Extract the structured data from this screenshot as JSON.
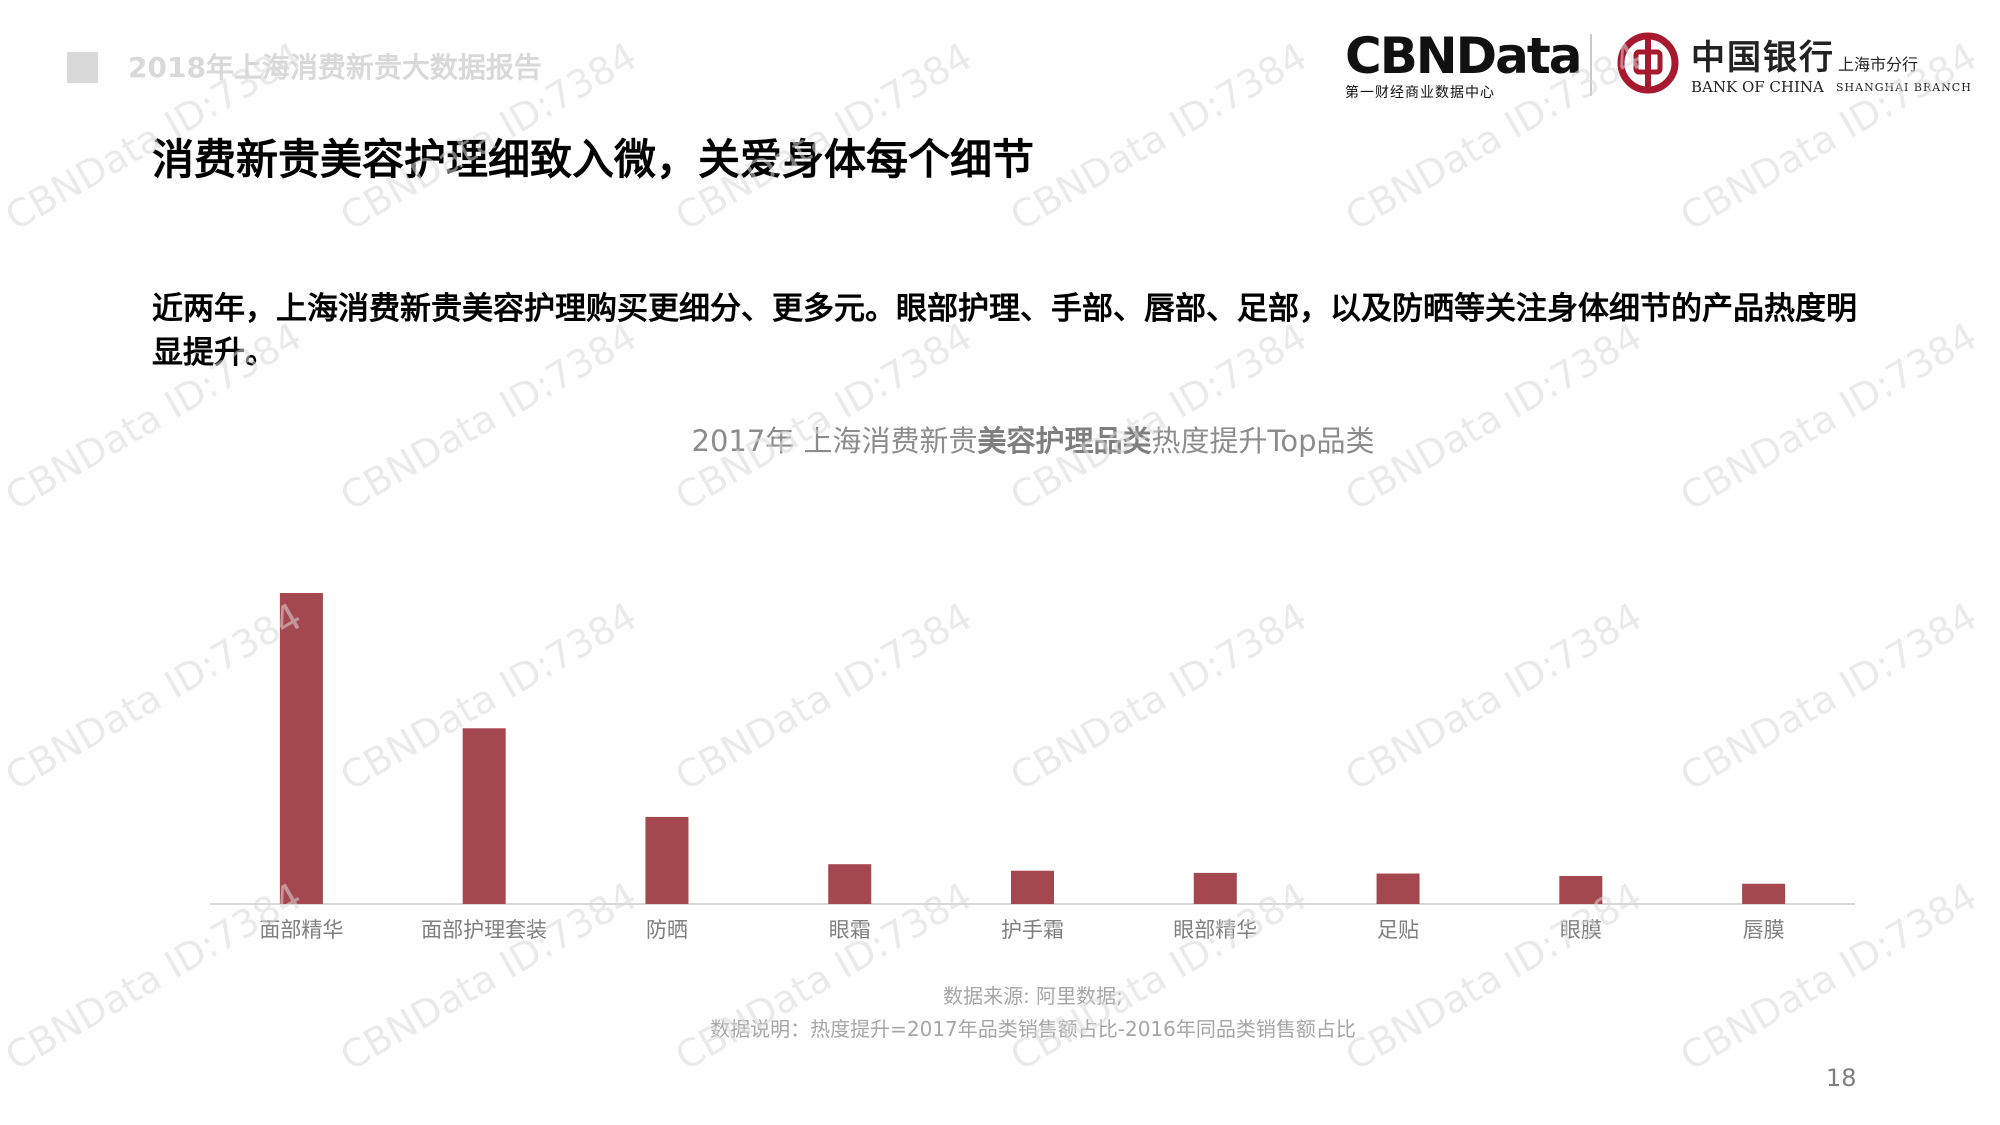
{
  "header": {
    "report_title": "2018年上海消费新贵大数据报告"
  },
  "logos": {
    "cbn": {
      "wordmark": "CBNData",
      "subtitle": "第一财经商业数据中心"
    },
    "boc": {
      "name_cn": "中国银行",
      "branch_cn": "上海市分行",
      "name_en": "BANK OF CHINA",
      "branch_en": "SHANGHAI BRANCH",
      "brand_color": "#a6192e"
    }
  },
  "headline": "消费新贵美容护理细致入微，关爱身体每个细节",
  "intro": "近两年，上海消费新贵美容护理购买更细分、更多元。眼部护理、手部、唇部、足部，以及防晒等关注身体细节的产品热度明显提升。",
  "chart_title": {
    "prefix": "2017年 上海消费新贵",
    "bold": "美容护理品类",
    "suffix": "热度提升Top品类"
  },
  "chart_data": {
    "type": "bar",
    "categories": [
      "面部精华",
      "面部护理套装",
      "防晒",
      "眼霜",
      "护手霜",
      "眼部精华",
      "足贴",
      "眼膜",
      "唇膜"
    ],
    "values": [
      100,
      56.5,
      28,
      12.8,
      10.7,
      10,
      9.8,
      9,
      6.5
    ],
    "ylim": [
      0,
      100
    ],
    "grid": false,
    "bar_color": "#a5474e"
  },
  "source": {
    "line1": "数据来源: 阿里数据;",
    "line2": "数据说明：热度提升=2017年品类销售额占比-2016年同品类销售额占比"
  },
  "page_number": "18",
  "watermark_text": "CBNData ID:7384"
}
